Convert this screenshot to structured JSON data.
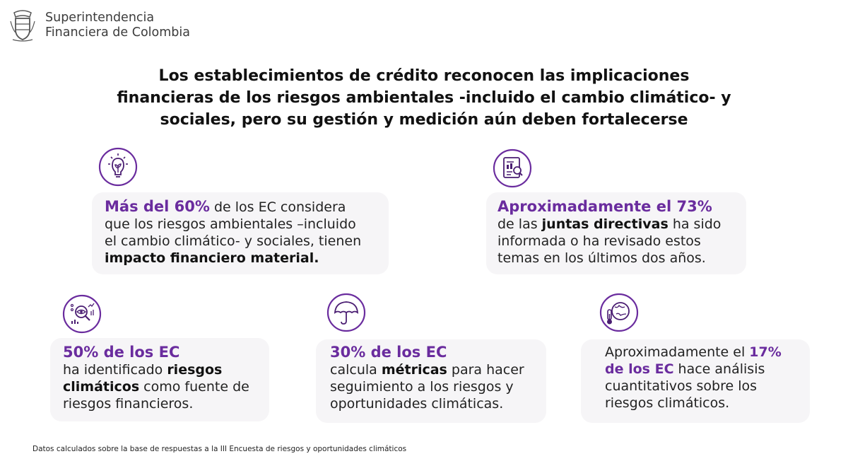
{
  "header": {
    "org_line1": "Superintendencia",
    "org_line2": "Financiera de Colombia"
  },
  "title": {
    "line1": "Los establecimientos de crédito reconocen las implicaciones",
    "line2": "financieras de los riesgos ambientales -incluido el cambio climático- y",
    "line3": "sociales, pero su gestión y medición aún deben fortalecerse"
  },
  "cards": {
    "c1": {
      "icon": "lightbulb-plant-icon",
      "hl": "Más del 60%",
      "t1": " de los EC considera",
      "t2": "que los riesgos ambientales –incluido",
      "t3": "el cambio climático- y sociales, tienen",
      "b1": "impacto financiero material."
    },
    "c2": {
      "icon": "report-magnifier-icon",
      "hl": "Aproximadamente el 73%",
      "t1": "de las ",
      "b1": "juntas directivas",
      "t2": " ha sido",
      "t3": "informada o ha revisado estos",
      "t4": "temas en los últimos dos años."
    },
    "c3": {
      "icon": "eye-data-analysis-icon",
      "hl": "50% de los EC",
      "t1": "ha identificado ",
      "b1": "riesgos",
      "b2": "climáticos",
      "t2": " como fuente de",
      "t3": "riesgos financieros."
    },
    "c4": {
      "icon": "umbrella-icon",
      "hl": "30% de los EC",
      "t1": "calcula ",
      "b1": "métricas",
      "t2": " para hacer",
      "t3": "seguimiento a los riesgos y",
      "t4": "oportunidades climáticas."
    },
    "c5": {
      "icon": "globe-thermometer-icon",
      "t1": "Aproximadamente el ",
      "hl1": "17%",
      "hl2": "de los EC",
      "t2": " hace análisis",
      "t3": "cuantitativos sobre los",
      "t4": "riesgos climáticos."
    }
  },
  "footnote": "Datos calculados sobre la base de respuestas a la III Encuesta de riesgos y oportunidades climáticos",
  "colors": {
    "accent": "#6a2c9e",
    "card_bg": "#f6f5f7"
  }
}
